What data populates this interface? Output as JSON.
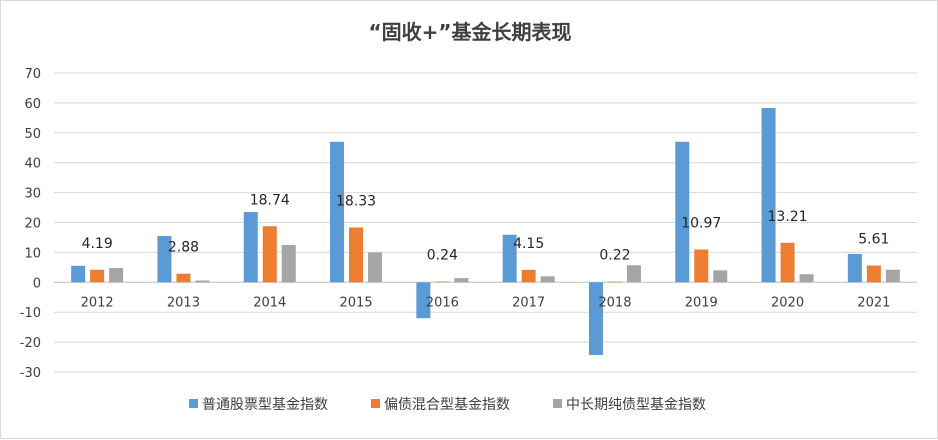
{
  "chart_data": {
    "type": "bar",
    "title": "“固收+”基金长期表现",
    "categories": [
      "2012",
      "2013",
      "2014",
      "2015",
      "2016",
      "2017",
      "2018",
      "2019",
      "2020",
      "2021"
    ],
    "series": [
      {
        "name": "普通股票型基金指数",
        "color": "#5b9bd5",
        "values": [
          5.5,
          15.5,
          23.5,
          47.0,
          -12.0,
          15.9,
          -24.3,
          47.0,
          58.3,
          9.5
        ]
      },
      {
        "name": "偏债混合型基金指数",
        "color": "#ed7d31",
        "values": [
          4.19,
          2.88,
          18.74,
          18.33,
          0.24,
          4.15,
          0.22,
          10.97,
          13.21,
          5.61
        ]
      },
      {
        "name": "中长期纯债型基金指数",
        "color": "#a5a5a5",
        "values": [
          4.8,
          0.6,
          12.5,
          10.0,
          1.4,
          2.0,
          5.7,
          4.0,
          2.7,
          4.2
        ]
      }
    ],
    "data_labels": [
      "4.19",
      "2.88",
      "18.74",
      "18.33",
      "0.24",
      "4.15",
      "0.22",
      "10.97",
      "13.21",
      "5.61"
    ],
    "ylim": [
      -30,
      70
    ],
    "yticks": [
      "70",
      "60",
      "50",
      "40",
      "30",
      "20",
      "10",
      "0",
      "-10",
      "-20",
      "-30"
    ],
    "grid": true,
    "legend_position": "bottom"
  }
}
